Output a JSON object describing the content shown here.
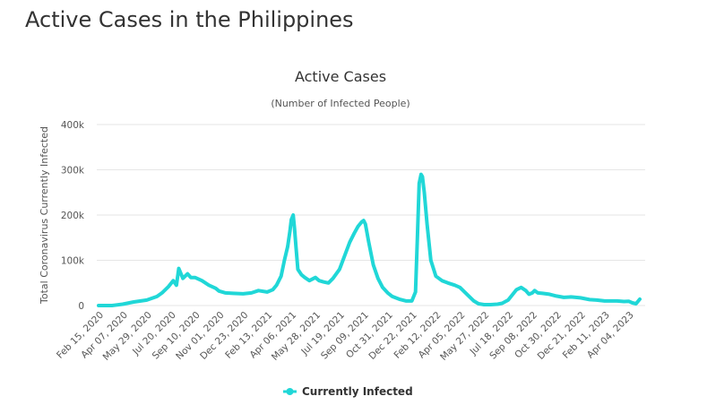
{
  "page": {
    "title": "Active Cases in the Philippines"
  },
  "chart_data": {
    "type": "line",
    "title": "Active Cases",
    "subtitle": "(Number of Infected People)",
    "ylabel": "Total Coronavirus Currently Infected",
    "xlabel": "",
    "ylim": [
      0,
      400000
    ],
    "grid": true,
    "legend_position": "bottom-center",
    "line_color": "#20d7d7",
    "y_ticks": [
      {
        "value": 0,
        "label": "0"
      },
      {
        "value": 100000,
        "label": "100k"
      },
      {
        "value": 200000,
        "label": "200k"
      },
      {
        "value": 300000,
        "label": "300k"
      },
      {
        "value": 400000,
        "label": "400k"
      }
    ],
    "x_ticks": [
      "Feb 15, 2020",
      "Apr 07, 2020",
      "May 29, 2020",
      "Jul 20, 2020",
      "Sep 10, 2020",
      "Nov 01, 2020",
      "Dec 23, 2020",
      "Feb 13, 2021",
      "Apr 06, 2021",
      "May 28, 2021",
      "Jul 19, 2021",
      "Sep 09, 2021",
      "Oct 31, 2021",
      "Dec 22, 2021",
      "Feb 12, 2022",
      "Apr 05, 2022",
      "May 27, 2022",
      "Jul 18, 2022",
      "Sep 08, 2022",
      "Oct 30, 2022",
      "Dec 21, 2022",
      "Feb 11, 2023",
      "Apr 04, 2023"
    ],
    "series": [
      {
        "name": "Currently Infected",
        "x": [
          "2020-02-15",
          "2020-03-15",
          "2020-04-07",
          "2020-05-01",
          "2020-05-29",
          "2020-06-20",
          "2020-07-01",
          "2020-07-15",
          "2020-07-25",
          "2020-08-01",
          "2020-08-06",
          "2020-08-15",
          "2020-08-25",
          "2020-09-01",
          "2020-09-10",
          "2020-09-25",
          "2020-10-10",
          "2020-10-25",
          "2020-11-01",
          "2020-11-15",
          "2020-12-01",
          "2020-12-23",
          "2021-01-10",
          "2021-01-25",
          "2021-02-13",
          "2021-02-25",
          "2021-03-05",
          "2021-03-15",
          "2021-03-22",
          "2021-03-29",
          "2021-04-03",
          "2021-04-06",
          "2021-04-10",
          "2021-04-13",
          "2021-04-16",
          "2021-04-20",
          "2021-04-28",
          "2021-05-05",
          "2021-05-15",
          "2021-05-28",
          "2021-06-05",
          "2021-06-15",
          "2021-06-25",
          "2021-07-05",
          "2021-07-19",
          "2021-07-30",
          "2021-08-10",
          "2021-08-20",
          "2021-08-28",
          "2021-09-05",
          "2021-09-09",
          "2021-09-13",
          "2021-09-20",
          "2021-09-30",
          "2021-10-10",
          "2021-10-20",
          "2021-10-31",
          "2021-11-10",
          "2021-11-25",
          "2021-12-10",
          "2021-12-22",
          "2021-12-30",
          "2022-01-03",
          "2022-01-07",
          "2022-01-11",
          "2022-01-14",
          "2022-01-18",
          "2022-01-24",
          "2022-02-01",
          "2022-02-12",
          "2022-02-25",
          "2022-03-10",
          "2022-03-25",
          "2022-04-05",
          "2022-04-20",
          "2022-05-05",
          "2022-05-15",
          "2022-05-27",
          "2022-06-10",
          "2022-06-25",
          "2022-07-05",
          "2022-07-18",
          "2022-07-28",
          "2022-08-05",
          "2022-08-15",
          "2022-08-25",
          "2022-09-01",
          "2022-09-08",
          "2022-09-13",
          "2022-09-20",
          "2022-09-30",
          "2022-10-15",
          "2022-10-30",
          "2022-11-15",
          "2022-12-01",
          "2022-12-21",
          "2023-01-10",
          "2023-01-25",
          "2023-02-11",
          "2023-02-25",
          "2023-03-10",
          "2023-03-25",
          "2023-04-04",
          "2023-04-12",
          "2023-04-20",
          "2023-04-28"
        ],
        "values": [
          0,
          0,
          3000,
          8000,
          12000,
          20000,
          28000,
          42000,
          55000,
          45000,
          82000,
          60000,
          70000,
          62000,
          62000,
          55000,
          45000,
          38000,
          32000,
          28000,
          27000,
          26000,
          28000,
          33000,
          30000,
          35000,
          45000,
          65000,
          100000,
          130000,
          165000,
          190000,
          200000,
          170000,
          130000,
          80000,
          68000,
          62000,
          55000,
          62000,
          55000,
          52000,
          50000,
          60000,
          80000,
          110000,
          140000,
          160000,
          175000,
          185000,
          188000,
          180000,
          140000,
          90000,
          60000,
          40000,
          28000,
          20000,
          14000,
          10000,
          10000,
          30000,
          150000,
          270000,
          290000,
          285000,
          250000,
          180000,
          100000,
          65000,
          55000,
          50000,
          45000,
          40000,
          25000,
          10000,
          4000,
          2000,
          2000,
          3000,
          5000,
          12000,
          25000,
          35000,
          40000,
          33000,
          25000,
          28000,
          33000,
          28000,
          27000,
          25000,
          21000,
          18000,
          19000,
          17000,
          13000,
          12000,
          10000,
          10000,
          10000,
          9000,
          9500,
          6000,
          4000,
          14000
        ]
      }
    ]
  },
  "legend": {
    "label": "Currently Infected"
  }
}
